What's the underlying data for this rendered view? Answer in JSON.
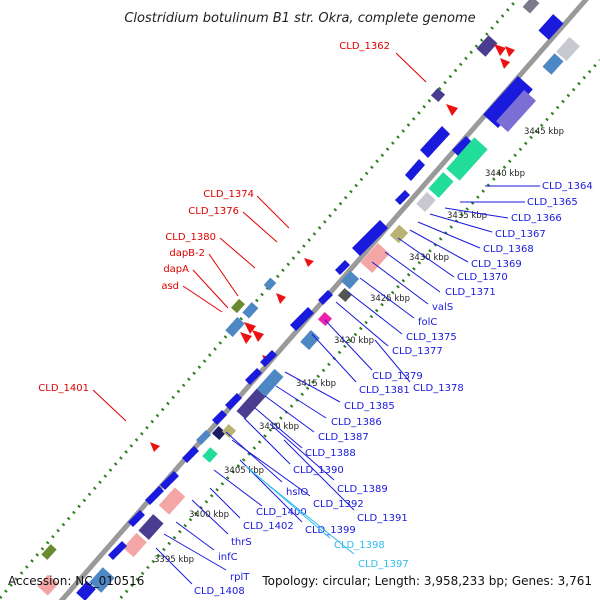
{
  "title": "Clostridium botulinum B1 str. Okra, complete genome",
  "footer": {
    "accession": "Accession: NC_010516",
    "topology": "Topology: circular; Length: 3,958,233 bp; Genes: 3,761"
  },
  "colors": {
    "backbone": "#9a9a9a",
    "tick_dots": "#2e7d1f",
    "label_red": "#dd0000",
    "label_blue": "#1a1adc",
    "label_cyan": "#33bbee"
  },
  "kbp_marks": [
    {
      "label": "3445 kbp"
    },
    {
      "label": "3440 kbp"
    },
    {
      "label": "3435 kbp"
    },
    {
      "label": "3430 kbp"
    },
    {
      "label": "3425 kbp"
    },
    {
      "label": "3420 kbp"
    },
    {
      "label": "3415 kbp"
    },
    {
      "label": "3410 kbp"
    },
    {
      "label": "3405 kbp"
    },
    {
      "label": "3400 kbp"
    },
    {
      "label": "3395 kbp"
    }
  ],
  "labels_outer": [
    {
      "text": "CLD_1362"
    },
    {
      "text": "CLD_1374"
    },
    {
      "text": "CLD_1376"
    },
    {
      "text": "CLD_1380"
    },
    {
      "text": "dapB-2"
    },
    {
      "text": "dapA"
    },
    {
      "text": "asd"
    },
    {
      "text": "CLD_1401"
    }
  ],
  "labels_inner": [
    {
      "text": "CLD_1364"
    },
    {
      "text": "CLD_1365"
    },
    {
      "text": "CLD_1366"
    },
    {
      "text": "CLD_1367"
    },
    {
      "text": "CLD_1368"
    },
    {
      "text": "CLD_1369"
    },
    {
      "text": "CLD_1370"
    },
    {
      "text": "CLD_1371"
    },
    {
      "text": "valS"
    },
    {
      "text": "folC"
    },
    {
      "text": "CLD_1375"
    },
    {
      "text": "CLD_1377"
    },
    {
      "text": "CLD_1379"
    },
    {
      "text": "CLD_1378"
    },
    {
      "text": "CLD_1381"
    },
    {
      "text": "CLD_1385"
    },
    {
      "text": "CLD_1386"
    },
    {
      "text": "CLD_1387"
    },
    {
      "text": "CLD_1388"
    },
    {
      "text": "CLD_1390"
    },
    {
      "text": "CLD_1389"
    },
    {
      "text": "hslO"
    },
    {
      "text": "CLD_1392"
    },
    {
      "text": "CLD_1391"
    },
    {
      "text": "CLD_1400"
    },
    {
      "text": "CLD_1402"
    },
    {
      "text": "CLD_1399"
    },
    {
      "text": "thrS"
    },
    {
      "text": "CLD_1398"
    },
    {
      "text": "CLD_1397"
    },
    {
      "text": "infC"
    },
    {
      "text": "rplT"
    },
    {
      "text": "CLD_1408"
    }
  ]
}
